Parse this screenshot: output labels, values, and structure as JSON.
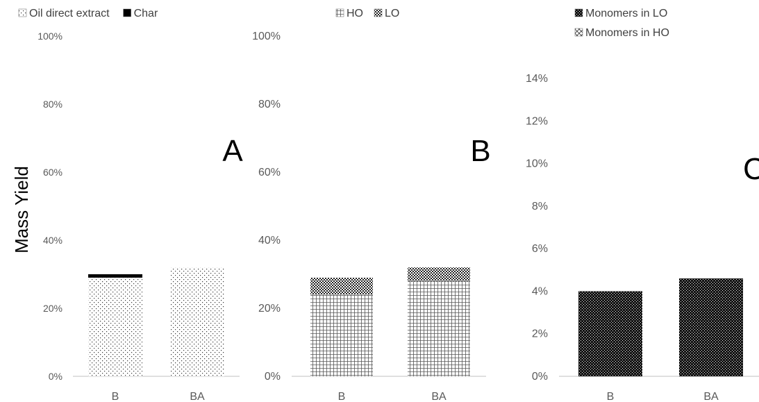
{
  "shared": {
    "ylabel": "Mass Yield"
  },
  "chart_data": [
    {
      "type": "bar",
      "stacked": true,
      "panel_label": "A",
      "categories": [
        "B",
        "BA"
      ],
      "series": [
        {
          "name": "Oil direct extract",
          "values": [
            29,
            32
          ],
          "pattern": "sparse-dots"
        },
        {
          "name": "Char",
          "values": [
            1,
            0
          ],
          "pattern": "solid"
        }
      ],
      "ylim": [
        0,
        100
      ],
      "yticks": [
        "0%",
        "20%",
        "40%",
        "60%",
        "80%",
        "100%"
      ],
      "ytick_values": [
        0,
        20,
        40,
        60,
        80,
        100
      ]
    },
    {
      "type": "bar",
      "stacked": true,
      "panel_label": "B",
      "categories": [
        "B",
        "BA"
      ],
      "series": [
        {
          "name": "HO",
          "values": [
            24,
            28
          ],
          "pattern": "grid"
        },
        {
          "name": "LO",
          "values": [
            5,
            4
          ],
          "pattern": "checker"
        }
      ],
      "ylim": [
        0,
        100
      ],
      "yticks": [
        "0%",
        "20%",
        "40%",
        "60%",
        "80%",
        "100%"
      ],
      "ytick_values": [
        0,
        20,
        40,
        60,
        80,
        100
      ]
    },
    {
      "type": "bar",
      "stacked": true,
      "panel_label": "C",
      "categories": [
        "B",
        "BA"
      ],
      "series": [
        {
          "name": "Monomers in HO",
          "values": [
            0,
            0
          ],
          "pattern": "cross"
        },
        {
          "name": "Monomers in LO",
          "values": [
            4.0,
            4.6
          ],
          "pattern": "dense-checker"
        }
      ],
      "legend_order": [
        1,
        0
      ],
      "ylim": [
        0,
        15
      ],
      "yticks": [
        "0%",
        "2%",
        "4%",
        "6%",
        "8%",
        "10%",
        "12%",
        "14%"
      ],
      "ytick_values": [
        0,
        2,
        4,
        6,
        8,
        10,
        12,
        14
      ]
    }
  ]
}
